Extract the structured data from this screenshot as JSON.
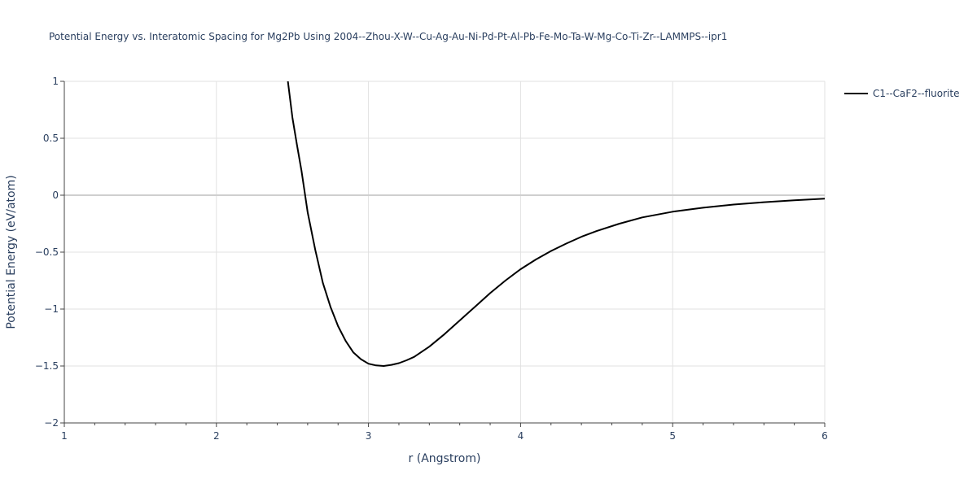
{
  "chart_data": {
    "type": "line",
    "title": "Potential Energy vs. Interatomic Spacing for Mg2Pb Using 2004--Zhou-X-W--Cu-Ag-Au-Ni-Pd-Pt-Al-Pb-Fe-Mo-Ta-W-Mg-Co-Ti-Zr--LAMMPS--ipr1",
    "xlabel": "r (Angstrom)",
    "ylabel": "Potential Energy (eV/atom)",
    "xlim": [
      1,
      6
    ],
    "ylim": [
      -2,
      1
    ],
    "x_ticks": [
      1,
      2,
      3,
      4,
      5,
      6
    ],
    "x_tick_labels": [
      "1",
      "2",
      "3",
      "4",
      "5",
      "6"
    ],
    "y_ticks": [
      -2,
      -1.5,
      -1,
      -0.5,
      0,
      0.5,
      1
    ],
    "y_tick_labels": [
      "−2",
      "−1.5",
      "−1",
      "−0.5",
      "0",
      "0.5",
      "1"
    ],
    "grid": true,
    "legend_position": "top-right",
    "series": [
      {
        "name": "C1--CaF2--fluorite",
        "color": "#000000",
        "x": [
          2.47,
          2.5,
          2.53,
          2.56,
          2.6,
          2.65,
          2.7,
          2.75,
          2.8,
          2.85,
          2.9,
          2.95,
          3.0,
          3.05,
          3.1,
          3.15,
          3.2,
          3.25,
          3.3,
          3.4,
          3.5,
          3.6,
          3.7,
          3.8,
          3.9,
          4.0,
          4.1,
          4.2,
          4.3,
          4.4,
          4.5,
          4.65,
          4.8,
          5.0,
          5.2,
          5.4,
          5.6,
          5.8,
          6.0
        ],
        "y": [
          1.0,
          0.68,
          0.44,
          0.21,
          -0.15,
          -0.48,
          -0.77,
          -0.98,
          -1.15,
          -1.28,
          -1.38,
          -1.44,
          -1.48,
          -1.495,
          -1.5,
          -1.49,
          -1.475,
          -1.45,
          -1.42,
          -1.33,
          -1.22,
          -1.1,
          -0.98,
          -0.86,
          -0.75,
          -0.65,
          -0.565,
          -0.49,
          -0.425,
          -0.365,
          -0.315,
          -0.25,
          -0.195,
          -0.145,
          -0.11,
          -0.082,
          -0.062,
          -0.045,
          -0.03
        ]
      }
    ]
  }
}
